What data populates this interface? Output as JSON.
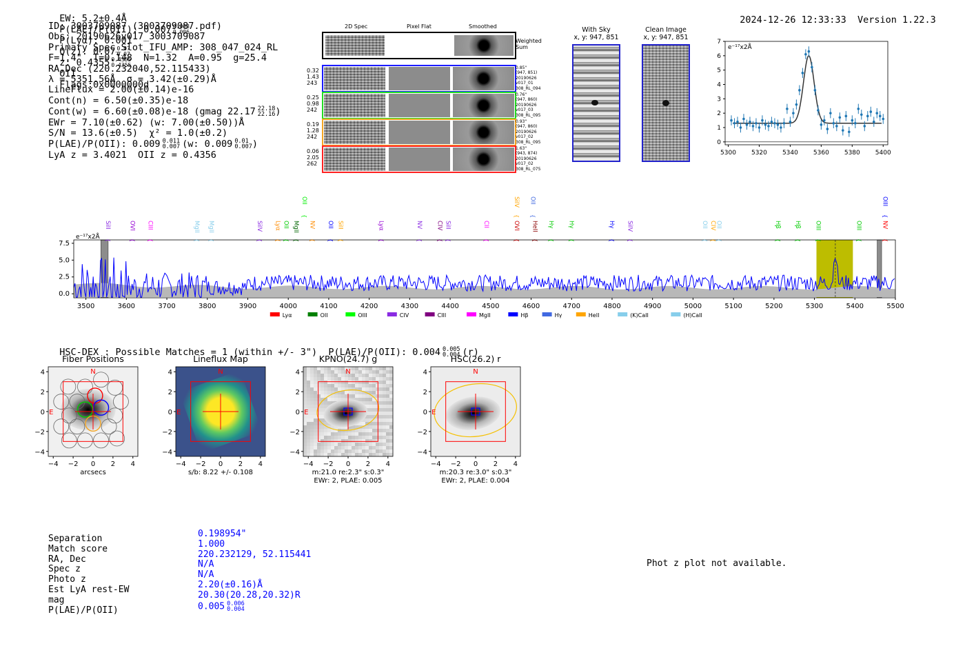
{
  "header": {
    "ew": "EW: 5.2±0.4Å",
    "plae_label": "P(LAE)/P(OII): 0.007",
    "plae_sup": "0.008",
    "plae_sub": "0.006",
    "plya": "P(Lyα): 0.001",
    "qz_label": "Q(z): 0.07",
    "qz_sup": "0.07",
    "qz_sub": "0.07",
    "z_label": "z: 0.4355",
    "z_sup": "0.4355",
    "z_sub": "0.4355",
    "z_line": "OII",
    "flags": "Flags:0x0000000d",
    "timestamp": "2024-12-26 12:33:33",
    "version": "Version 1.22.3"
  },
  "info": {
    "id": "ID: 3003709087 (3003709087.pdf)",
    "obs": "Obs: 20190626v017_3003709087",
    "primary": "Primary Spec_Slot_IFU_AMP: 308_047_024_RL",
    "fline": "F=1.4\"  T=0.148  N=1.32  A=0.95  g=25.4",
    "radec": "RA,Dec (220.232040,52.115433)",
    "lambda": "λ = 5351.56Å  σ = 3.42(±0.29)Å",
    "lineflux": "LineFlux = 2.00(±0.14)e-16",
    "contn": "Cont(n) = 6.50(±0.35)e-18",
    "contw": "Cont(w) = 6.60(±0.08)e-18 (gmag 22.17",
    "contw_sup": "22.18",
    "contw_sub": "22.16",
    "contw_end": ")",
    "ewr": "EWr = 7.10(±0.62) (w: 7.00(±0.50))Å",
    "sn": "S/N = 13.6(±0.5)  χ² = 1.0(±0.2)",
    "plae": "P(LAE)/P(OII): 0.009",
    "plae_sup": "0.011",
    "plae_sub": "0.007",
    "plae_w": "(w: 0.009",
    "plae_w_sup": "0.01",
    "plae_w_sub": "0.007",
    "plae_w_end": ")",
    "lya": "LyA z = 3.4021  OII z = 0.4356"
  },
  "cutouts": {
    "headers": [
      "2D Spec",
      "Pixel Flat",
      "Smoothed"
    ],
    "weighted": "Weighted\nSum",
    "rows": [
      {
        "vals": [
          "0.32",
          "1.43",
          "243"
        ],
        "color": "#1a1aff",
        "meta": [
          "0.85\"",
          "(947, 851)",
          "20190626",
          "v017_01",
          "308_RL_094"
        ]
      },
      {
        "vals": [
          "0.25",
          "0.98",
          "242"
        ],
        "color": "#22dd22",
        "meta": [
          "0.76\"",
          "(947, 860)",
          "20190626",
          "v017_03",
          "308_RL_095"
        ]
      },
      {
        "vals": [
          "0.19",
          "1.28",
          "242"
        ],
        "color": "#f5a623",
        "meta": [
          "0.93\"",
          "(947, 860)",
          "20190626",
          "v017_02",
          "308_RL_095"
        ]
      },
      {
        "vals": [
          "0.06",
          "2.05",
          "262"
        ],
        "color": "#ff2222",
        "meta": [
          "1.63\"",
          "(943, 874)",
          "20190626",
          "v017_02",
          "308_RL_075"
        ]
      }
    ]
  },
  "sky": {
    "with_sky_title": "With Sky",
    "with_sky_xy": "x, y: 947, 851",
    "clean_title": "Clean Image",
    "clean_xy": "x, y: 947, 851"
  },
  "chart_data": [
    {
      "type": "scatter",
      "title": "",
      "ylabel": "e⁻¹⁷x2Å",
      "xlim": [
        5298,
        5403
      ],
      "ylim": [
        -0.2,
        7
      ],
      "xticks": [
        "5300",
        "5320",
        "5340",
        "5360",
        "5380",
        "5400"
      ],
      "yticks": [
        "0",
        "1",
        "2",
        "3",
        "4",
        "5",
        "6",
        "7"
      ],
      "x": [
        5302,
        5304,
        5306,
        5308,
        5310,
        5312,
        5314,
        5316,
        5318,
        5320,
        5322,
        5324,
        5326,
        5328,
        5330,
        5332,
        5334,
        5336,
        5338,
        5340,
        5342,
        5344,
        5346,
        5348,
        5350,
        5352,
        5354,
        5356,
        5358,
        5360,
        5362,
        5364,
        5366,
        5368,
        5370,
        5372,
        5374,
        5376,
        5378,
        5380,
        5382,
        5384,
        5386,
        5388,
        5390,
        5392,
        5394,
        5396,
        5398,
        5400
      ],
      "values": [
        1.5,
        1.3,
        1.4,
        1.0,
        1.6,
        1.2,
        1.4,
        1.1,
        1.3,
        1.0,
        1.5,
        1.2,
        1.1,
        1.4,
        1.3,
        1.2,
        1.0,
        1.3,
        2.3,
        1.4,
        2.0,
        2.6,
        3.6,
        4.8,
        6.1,
        6.3,
        5.2,
        3.6,
        2.2,
        1.2,
        1.5,
        0.9,
        2.0,
        1.3,
        1.1,
        1.7,
        0.8,
        1.8,
        0.7,
        1.5,
        1.3,
        2.3,
        1.9,
        1.1,
        1.8,
        2.1,
        1.4,
        2.0,
        1.8,
        1.6
      ],
      "fit": {
        "continuum": 1.3,
        "center": 5352.0,
        "amplitude": 4.7,
        "sigma": 3.42
      }
    },
    {
      "type": "line",
      "title": "",
      "ylabel": "e⁻¹⁷x2Å",
      "xlim": [
        3470,
        5500
      ],
      "ylim": [
        -0.6,
        8.0
      ],
      "xticks": [
        "3500",
        "3600",
        "3700",
        "3800",
        "3900",
        "4000",
        "4100",
        "4200",
        "4300",
        "4400",
        "4500",
        "4600",
        "4700",
        "4800",
        "4900",
        "5000",
        "5100",
        "5200",
        "5300",
        "5400",
        "5500"
      ],
      "yticks": [
        "0.0",
        "2.5",
        "5.0",
        "7.5"
      ],
      "highlight": [
        5305,
        5395
      ],
      "marker": 5351.6,
      "series": [
        {
          "name": "flux",
          "color": "#0000ff"
        },
        {
          "name": "error",
          "color": "#b0b0b0"
        }
      ],
      "line_labels": [
        {
          "name": "SiII",
          "x": 3545,
          "color": "#8a2be2",
          "row": 1
        },
        {
          "name": "OVI",
          "x": 3605,
          "color": "#9400d3",
          "row": 1
        },
        {
          "name": "CIII",
          "x": 3650,
          "color": "#ff00ff",
          "row": 1
        },
        {
          "name": "MgII",
          "x": 3765,
          "color": "#87ceeb",
          "row": 1
        },
        {
          "name": "MgII",
          "x": 3800,
          "color": "#87ceeb",
          "row": 1
        },
        {
          "name": "SiIV",
          "x": 3920,
          "color": "#8a2be2",
          "row": 1
        },
        {
          "name": "Lyα",
          "x": 3965,
          "color": "#ff8c00",
          "row": 1
        },
        {
          "name": "OII",
          "x": 3985,
          "color": "#00cc00",
          "row": 1
        },
        {
          "name": "MgII",
          "x": 4010,
          "color": "#006400",
          "row": 1
        },
        {
          "name": "OII",
          "x": 4030,
          "color": "#00ee00",
          "row": 0
        },
        {
          "name": "NV",
          "x": 4050,
          "color": "#ff8c00",
          "row": 1
        },
        {
          "name": "OII",
          "x": 4095,
          "color": "#0000ff",
          "row": 1
        },
        {
          "name": "SiII",
          "x": 4120,
          "color": "#ffa500",
          "row": 1
        },
        {
          "name": "Lyα",
          "x": 4220,
          "color": "#9400d3",
          "row": 1
        },
        {
          "name": "NV",
          "x": 4315,
          "color": "#8a2be2",
          "row": 1
        },
        {
          "name": "CIV",
          "x": 4365,
          "color": "#800080",
          "row": 1
        },
        {
          "name": "SiII",
          "x": 4385,
          "color": "#8a2be2",
          "row": 1
        },
        {
          "name": "CII",
          "x": 4480,
          "color": "#ff00ff",
          "row": 1
        },
        {
          "name": "OVI",
          "x": 4555,
          "color": "#cc0000",
          "row": 1
        },
        {
          "name": "SiIV",
          "x": 4555,
          "color": "#ffa500",
          "row": 0
        },
        {
          "name": "OII",
          "x": 4595,
          "color": "#4169e1",
          "row": 0
        },
        {
          "name": "HeII",
          "x": 4600,
          "color": "#8b0000",
          "row": 1
        },
        {
          "name": "Hγ",
          "x": 4640,
          "color": "#00cc00",
          "row": 1
        },
        {
          "name": "Hγ",
          "x": 4690,
          "color": "#00cc00",
          "row": 1
        },
        {
          "name": "Hγ",
          "x": 4790,
          "color": "#0000ff",
          "row": 1
        },
        {
          "name": "SiIV",
          "x": 4835,
          "color": "#8a2be2",
          "row": 1
        },
        {
          "name": "OII",
          "x": 5020,
          "color": "#87ceeb",
          "row": 1
        },
        {
          "name": "CIV",
          "x": 5040,
          "color": "#ffa500",
          "row": 1
        },
        {
          "name": "OII",
          "x": 5055,
          "color": "#87ceeb",
          "row": 1
        },
        {
          "name": "Hβ",
          "x": 5200,
          "color": "#00cc00",
          "row": 1
        },
        {
          "name": "Hβ",
          "x": 5250,
          "color": "#00cc00",
          "row": 1
        },
        {
          "name": "OIII",
          "x": 5300,
          "color": "#00cc00",
          "row": 1
        },
        {
          "name": "OIII",
          "x": 5400,
          "color": "#00cc00",
          "row": 1
        },
        {
          "name": "NV",
          "x": 5465,
          "color": "#ff0000",
          "row": 1
        },
        {
          "name": "OIII",
          "x": 5465,
          "color": "#0000ff",
          "row": 0
        }
      ],
      "legend": [
        {
          "name": "Lyα",
          "color": "#ff0000"
        },
        {
          "name": "OII",
          "color": "#008000"
        },
        {
          "name": "OIII",
          "color": "#00ff00"
        },
        {
          "name": "CIV",
          "color": "#8a2be2"
        },
        {
          "name": "CIII",
          "color": "#800080"
        },
        {
          "name": "MgII",
          "color": "#ff00ff"
        },
        {
          "name": "Hβ",
          "color": "#0000ff"
        },
        {
          "name": "Hγ",
          "color": "#4169e1"
        },
        {
          "name": "HeII",
          "color": "#ffa500"
        },
        {
          "name": "(K)CaII",
          "color": "#87ceeb"
        },
        {
          "name": "(H)CaII",
          "color": "#87ceeb"
        }
      ]
    }
  ],
  "hsc": {
    "title_text": "HSC-DEX : Possible Matches = 1 (within +/- 3\")  P(LAE)/P(OII): 0.004",
    "sup": "0.005",
    "sub": "0.004",
    "suffix": "(r)"
  },
  "panels": [
    {
      "title": "Fiber Positions",
      "caption": [
        "arcsecs"
      ]
    },
    {
      "title": "Lineflux Map",
      "caption": [
        "s/b: 8.22 +/- 0.108"
      ]
    },
    {
      "title": "KPNO(24.7) g",
      "caption": [
        "m:21.0  re:2.3\"  s:0.3\"",
        "EWr: 2, PLAE: 0.005"
      ]
    },
    {
      "title": "HSC(26.2) r",
      "caption": [
        "m:20.3  re:3.0\"  s:0.3\"",
        "EWr: 2, PLAE: 0.004"
      ]
    }
  ],
  "panel_ticks": {
    "x": [
      "−4",
      "−2",
      "0",
      "2",
      "4"
    ],
    "y": [
      "4",
      "2",
      "0",
      "−2",
      "−4"
    ],
    "north": "N",
    "east": "E"
  },
  "match_table": {
    "labels": [
      "Separation",
      "Match score",
      "RA, Dec",
      "Spec z",
      "Photo z",
      "Est LyA rest-EW",
      "mag",
      "P(LAE)/P(OII)"
    ],
    "values": [
      "0.198954\"",
      "1.000",
      "220.232129, 52.115441",
      "N/A",
      "N/A",
      "2.20(±0.16)Å",
      "20.30(20.28,20.32)R",
      "0.005"
    ],
    "plae_sup": "0.006",
    "plae_sub": "0.004"
  },
  "photz_note": "Phot z plot not available."
}
